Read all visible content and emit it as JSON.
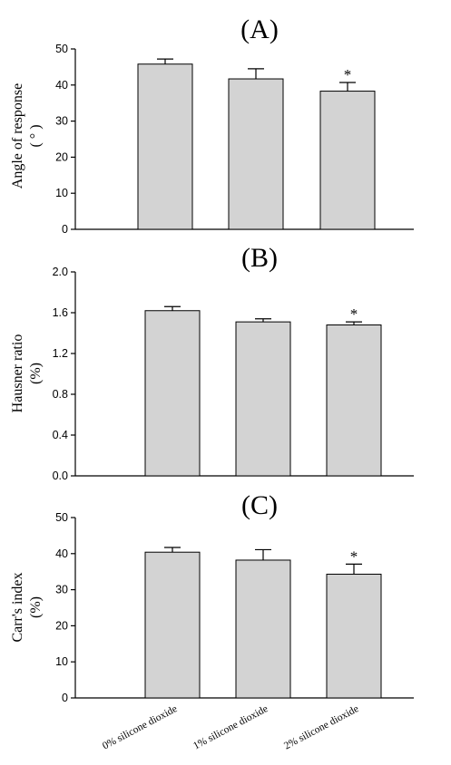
{
  "chart_data": [
    {
      "type": "bar",
      "panel_label": "(A)",
      "ylabel_lines": [
        "Angle of response",
        "( ° )"
      ],
      "ylim": [
        0,
        50
      ],
      "yticks": [
        "0",
        "10",
        "20",
        "30",
        "40",
        "50"
      ],
      "categories": [
        "0% silicone dioxide",
        "1% silicone dioxide",
        "2% silicone dioxide"
      ],
      "values": [
        45.8,
        41.7,
        38.3
      ],
      "errors": [
        1.4,
        2.8,
        2.4
      ],
      "annotations": [
        "",
        "",
        "*"
      ]
    },
    {
      "type": "bar",
      "panel_label": "(B)",
      "ylabel_lines": [
        "Hausner ratio",
        "(%)"
      ],
      "ylim": [
        0,
        2.0
      ],
      "yticks": [
        "0.0",
        "0.4",
        "0.8",
        "1.2",
        "1.6",
        "2.0"
      ],
      "categories": [
        "0% silicone dioxide",
        "1% silicone dioxide",
        "2% silicone dioxide"
      ],
      "values": [
        1.62,
        1.51,
        1.48
      ],
      "errors": [
        0.04,
        0.03,
        0.03
      ],
      "annotations": [
        "",
        "",
        "*"
      ]
    },
    {
      "type": "bar",
      "panel_label": "(C)",
      "ylabel_lines": [
        "Carr's index",
        "(%)"
      ],
      "ylim": [
        0,
        50
      ],
      "yticks": [
        "0",
        "10",
        "20",
        "30",
        "40",
        "50"
      ],
      "categories": [
        "0% silicone dioxide",
        "1% silicone dioxide",
        "2% silicone dioxide"
      ],
      "values": [
        40.4,
        38.2,
        34.3
      ],
      "errors": [
        1.3,
        2.9,
        2.8
      ],
      "annotations": [
        "",
        "",
        "*"
      ]
    }
  ]
}
